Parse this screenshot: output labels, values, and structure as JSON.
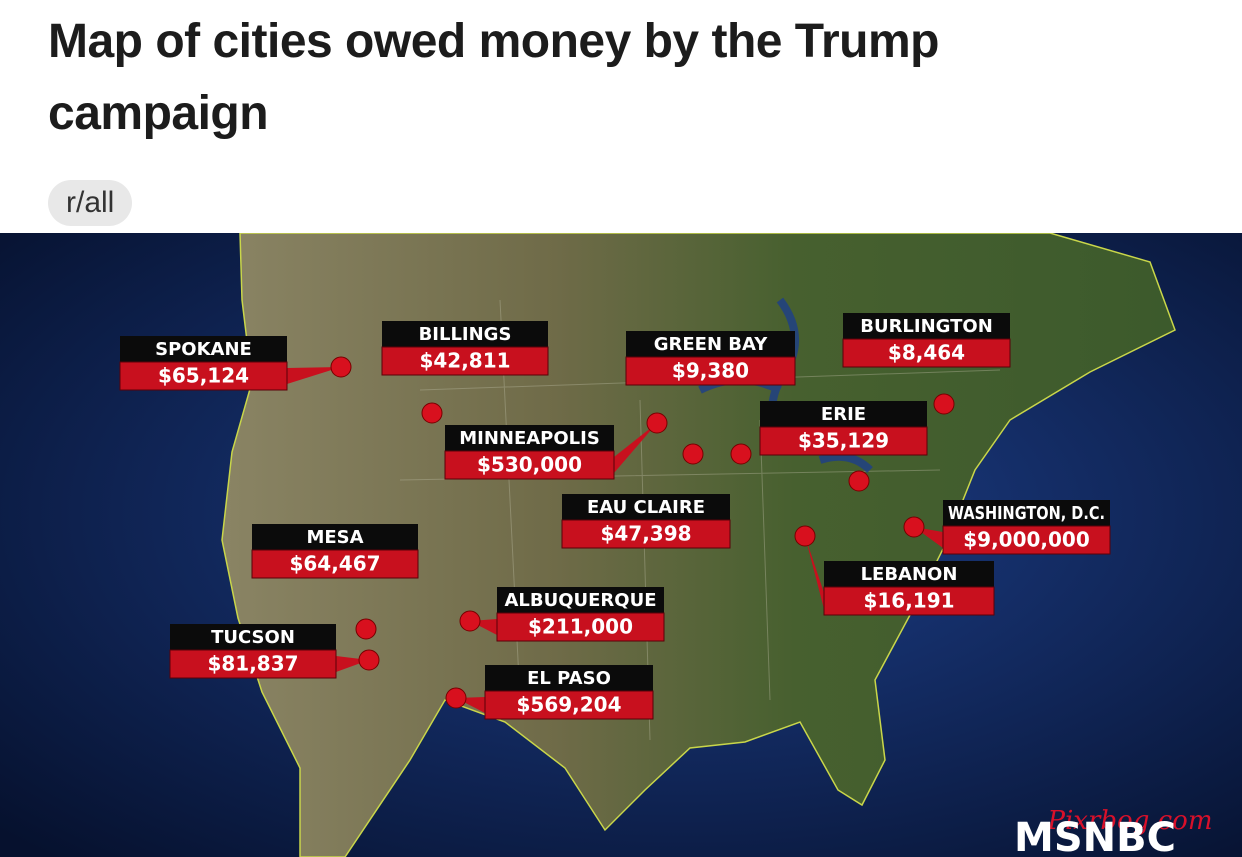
{
  "header": {
    "title": "Map of cities owed money by the Trump campaign",
    "subreddit": "r/all"
  },
  "map": {
    "pins": [
      {
        "city": "SPOKANE",
        "amount": "$65,124"
      },
      {
        "city": "BILLINGS",
        "amount": "$42,811"
      },
      {
        "city": "GREEN BAY",
        "amount": "$9,380"
      },
      {
        "city": "BURLINGTON",
        "amount": "$8,464"
      },
      {
        "city": "MINNEAPOLIS",
        "amount": "$530,000"
      },
      {
        "city": "ERIE",
        "amount": "$35,129"
      },
      {
        "city": "EAU CLAIRE",
        "amount": "$47,398"
      },
      {
        "city": "WASHINGTON, D.C.",
        "amount": "$9,000,000"
      },
      {
        "city": "MESA",
        "amount": "$64,467"
      },
      {
        "city": "LEBANON",
        "amount": "$16,191"
      },
      {
        "city": "ALBUQUERQUE",
        "amount": "$211,000"
      },
      {
        "city": "TUCSON",
        "amount": "$81,837"
      },
      {
        "city": "EL PASO",
        "amount": "$569,204"
      }
    ],
    "logo": "MSNBC",
    "watermark": "Pixrbog.com"
  }
}
